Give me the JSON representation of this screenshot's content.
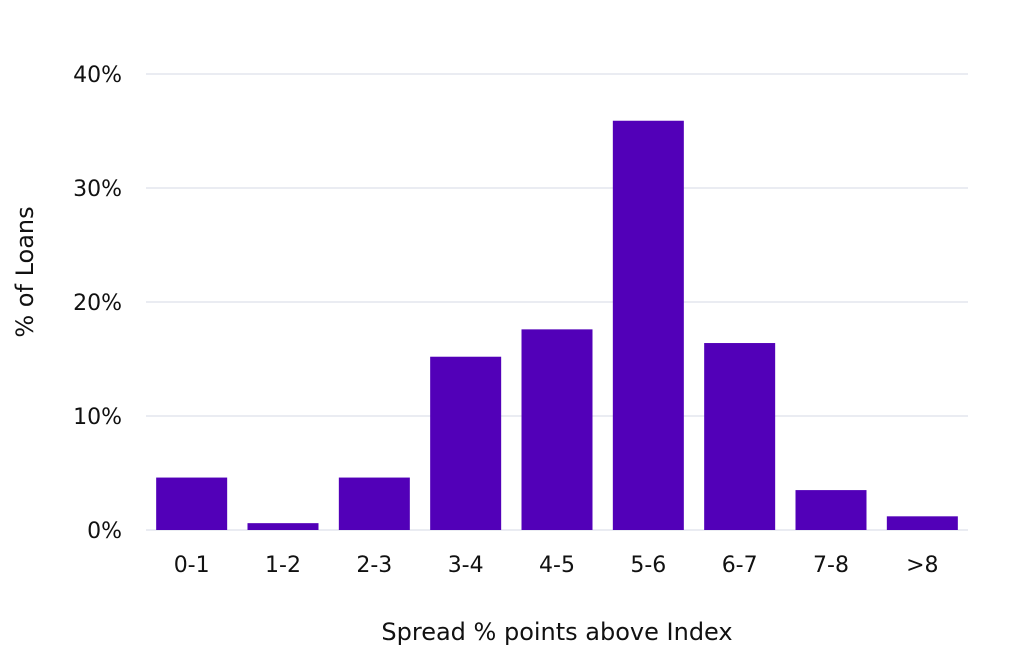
{
  "chart_data": {
    "type": "bar",
    "categories": [
      "0-1",
      "1-2",
      "2-3",
      "3-4",
      "4-5",
      "5-6",
      "6-7",
      "7-8",
      ">8"
    ],
    "values": [
      4.6,
      0.6,
      4.6,
      15.2,
      17.6,
      35.9,
      16.4,
      3.5,
      1.2
    ],
    "xlabel": "Spread % points above Index",
    "ylabel": "% of Loans",
    "ylim": [
      0,
      40
    ],
    "yticks": [
      0,
      10,
      20,
      30,
      40
    ],
    "ytick_labels": [
      "0%",
      "10%",
      "20%",
      "30%",
      "40%"
    ],
    "grid": true,
    "bar_color": "#5200b8",
    "grid_color": "#dde0ea"
  }
}
